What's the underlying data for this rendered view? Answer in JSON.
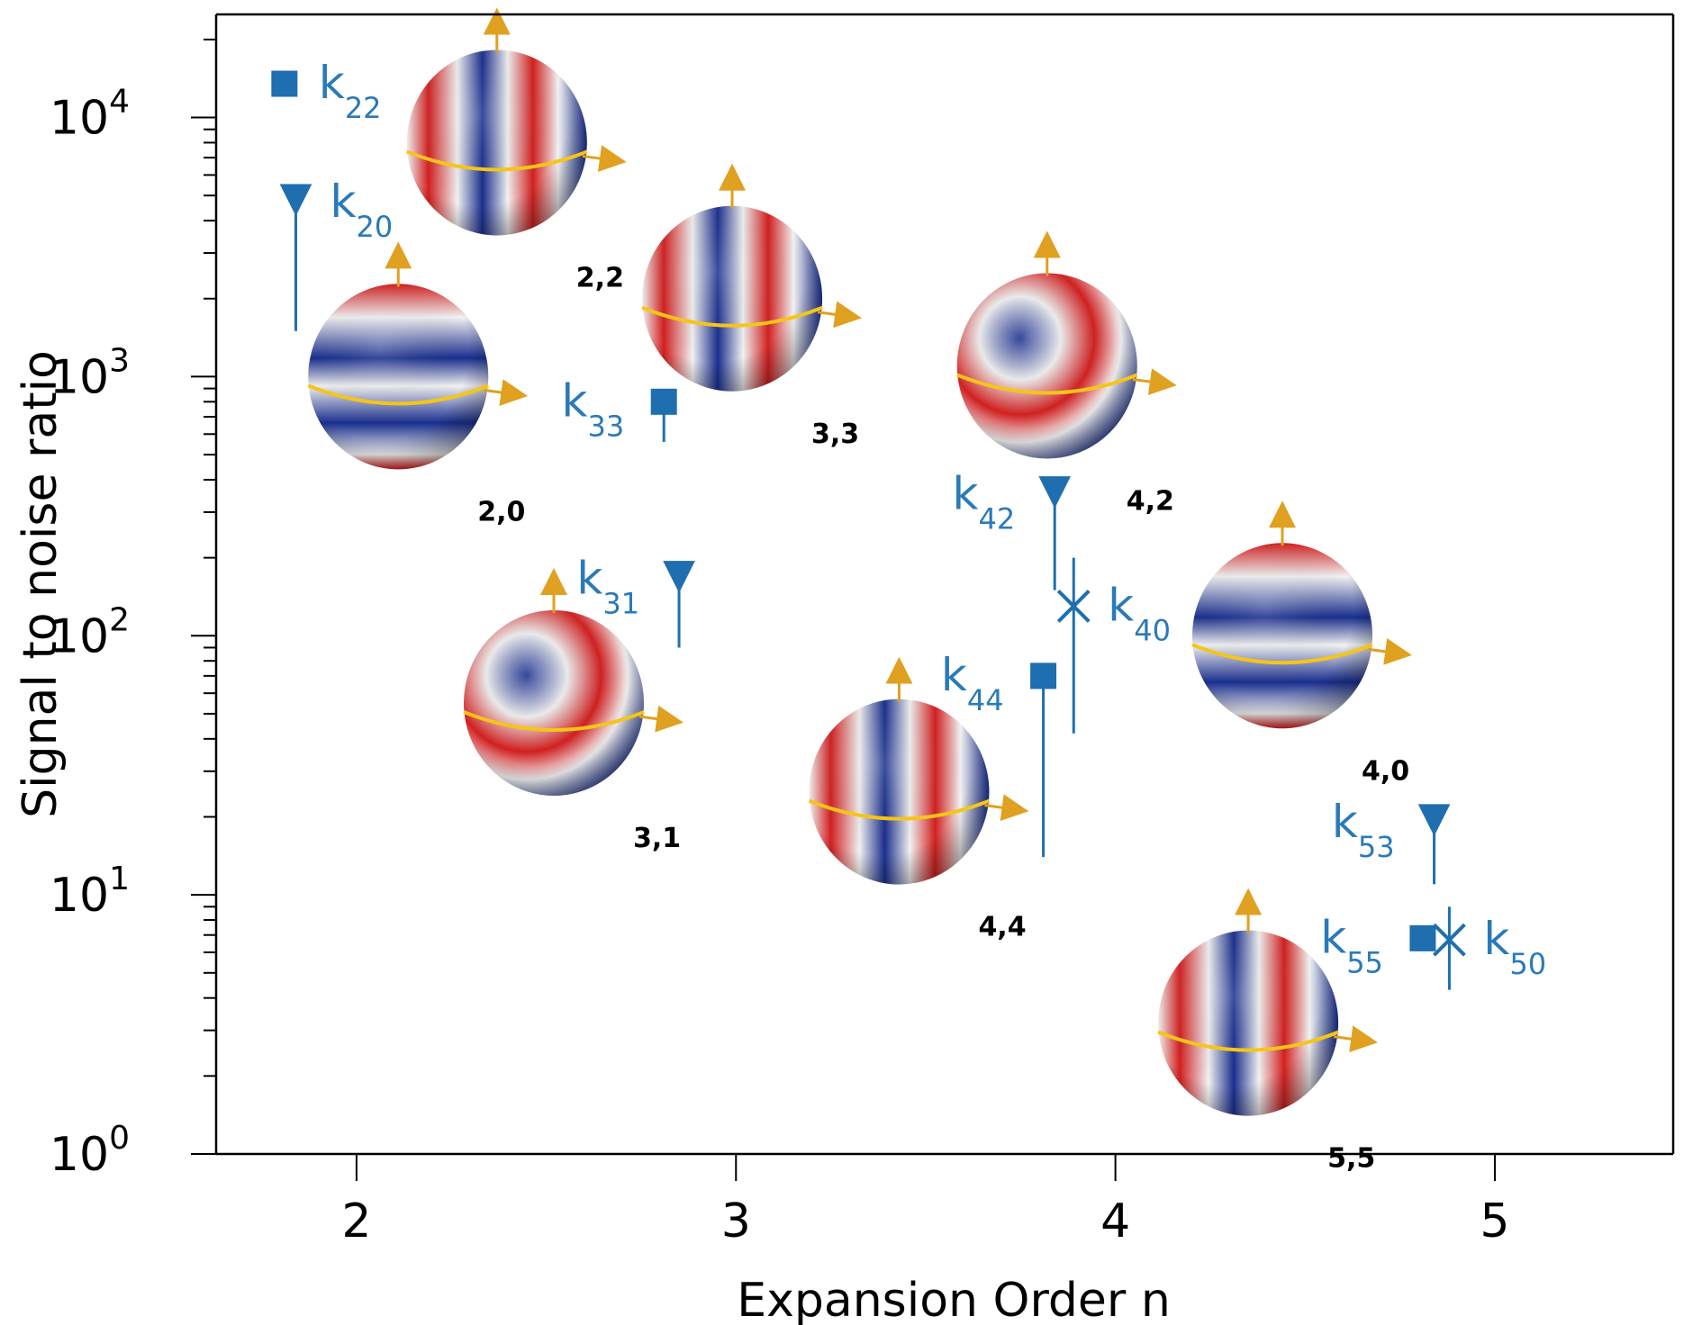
{
  "chart_data": {
    "type": "scatter",
    "xlabel": "Expansion Order n",
    "ylabel": "Signal to noise ratio",
    "xlim": [
      1.63,
      5.47
    ],
    "ylim": [
      1,
      25000
    ],
    "y_scale": "log",
    "x_ticks": [
      {
        "value": 2,
        "label": "2"
      },
      {
        "value": 3,
        "label": "3"
      },
      {
        "value": 4,
        "label": "4"
      },
      {
        "value": 5,
        "label": "5"
      }
    ],
    "y_ticks": [
      {
        "value": 1,
        "base": "10",
        "exp": "0"
      },
      {
        "value": 10,
        "base": "10",
        "exp": "1"
      },
      {
        "value": 100,
        "base": "10",
        "exp": "2"
      },
      {
        "value": 1000,
        "base": "10",
        "exp": "3"
      },
      {
        "value": 10000,
        "base": "10",
        "exp": "4"
      }
    ],
    "points": [
      {
        "id": "k22",
        "base": "k",
        "sub": "22",
        "x": 1.81,
        "y": 13500,
        "y_low": 12500,
        "marker": "square",
        "label_side": "right"
      },
      {
        "id": "k20",
        "base": "k",
        "sub": "20",
        "x": 1.84,
        "y": 4700,
        "y_low": 1500,
        "marker": "triangle",
        "label_side": "right"
      },
      {
        "id": "k33",
        "base": "k",
        "sub": "33",
        "x": 2.81,
        "y": 800,
        "y_low": 560,
        "marker": "square",
        "label_side": "left"
      },
      {
        "id": "k31",
        "base": "k",
        "sub": "31",
        "x": 2.85,
        "y": 165,
        "y_low": 90,
        "marker": "triangle",
        "label_side": "left"
      },
      {
        "id": "k42",
        "base": "k",
        "sub": "42",
        "x": 3.84,
        "y": 350,
        "y_low": 150,
        "marker": "triangle",
        "label_side": "left"
      },
      {
        "id": "k40",
        "base": "k",
        "sub": "40",
        "x": 3.89,
        "y": 130,
        "y_low": 42,
        "y_high": 200,
        "marker": "cross",
        "label_side": "right"
      },
      {
        "id": "k44",
        "base": "k",
        "sub": "44",
        "x": 3.81,
        "y": 70,
        "y_low": 14,
        "marker": "square",
        "label_side": "left"
      },
      {
        "id": "k53",
        "base": "k",
        "sub": "53",
        "x": 4.84,
        "y": 19,
        "y_low": 11,
        "marker": "triangle",
        "label_side": "left"
      },
      {
        "id": "k55",
        "base": "k",
        "sub": "55",
        "x": 4.81,
        "y": 6.8,
        "y_low": 6.3,
        "marker": "square",
        "label_side": "left"
      },
      {
        "id": "k50",
        "base": "k",
        "sub": "50",
        "x": 4.88,
        "y": 6.7,
        "y_low": 4.3,
        "y_high": 9,
        "marker": "cross",
        "label_side": "right"
      }
    ],
    "shapes": [
      {
        "id": "2,2",
        "label": "2,2",
        "x": 2.37,
        "y": 8000,
        "pattern": "sectoral"
      },
      {
        "id": "2,0",
        "label": "2,0",
        "x": 2.11,
        "y": 1000,
        "pattern": "zonal"
      },
      {
        "id": "3,3",
        "label": "3,3",
        "x": 2.99,
        "y": 2000,
        "pattern": "sectoral"
      },
      {
        "id": "4,2",
        "label": "4,2",
        "x": 3.82,
        "y": 1100,
        "pattern": "tesseral"
      },
      {
        "id": "3,1",
        "label": "3,1",
        "x": 2.52,
        "y": 55,
        "pattern": "tesseral"
      },
      {
        "id": "4,4",
        "label": "4,4",
        "x": 3.43,
        "y": 25,
        "pattern": "sectoral"
      },
      {
        "id": "4,0",
        "label": "4,0",
        "x": 4.44,
        "y": 100,
        "pattern": "zonal"
      },
      {
        "id": "5,5",
        "label": "5,5",
        "x": 4.35,
        "y": 3.2,
        "pattern": "sectoral"
      }
    ],
    "colors": {
      "marker": "#1f6fb0",
      "label": "#2a7ab8",
      "shape_red": "#d42020",
      "shape_blue": "#1a2f8f",
      "equator": "#f5c518",
      "arrow": "#e0a020"
    }
  }
}
